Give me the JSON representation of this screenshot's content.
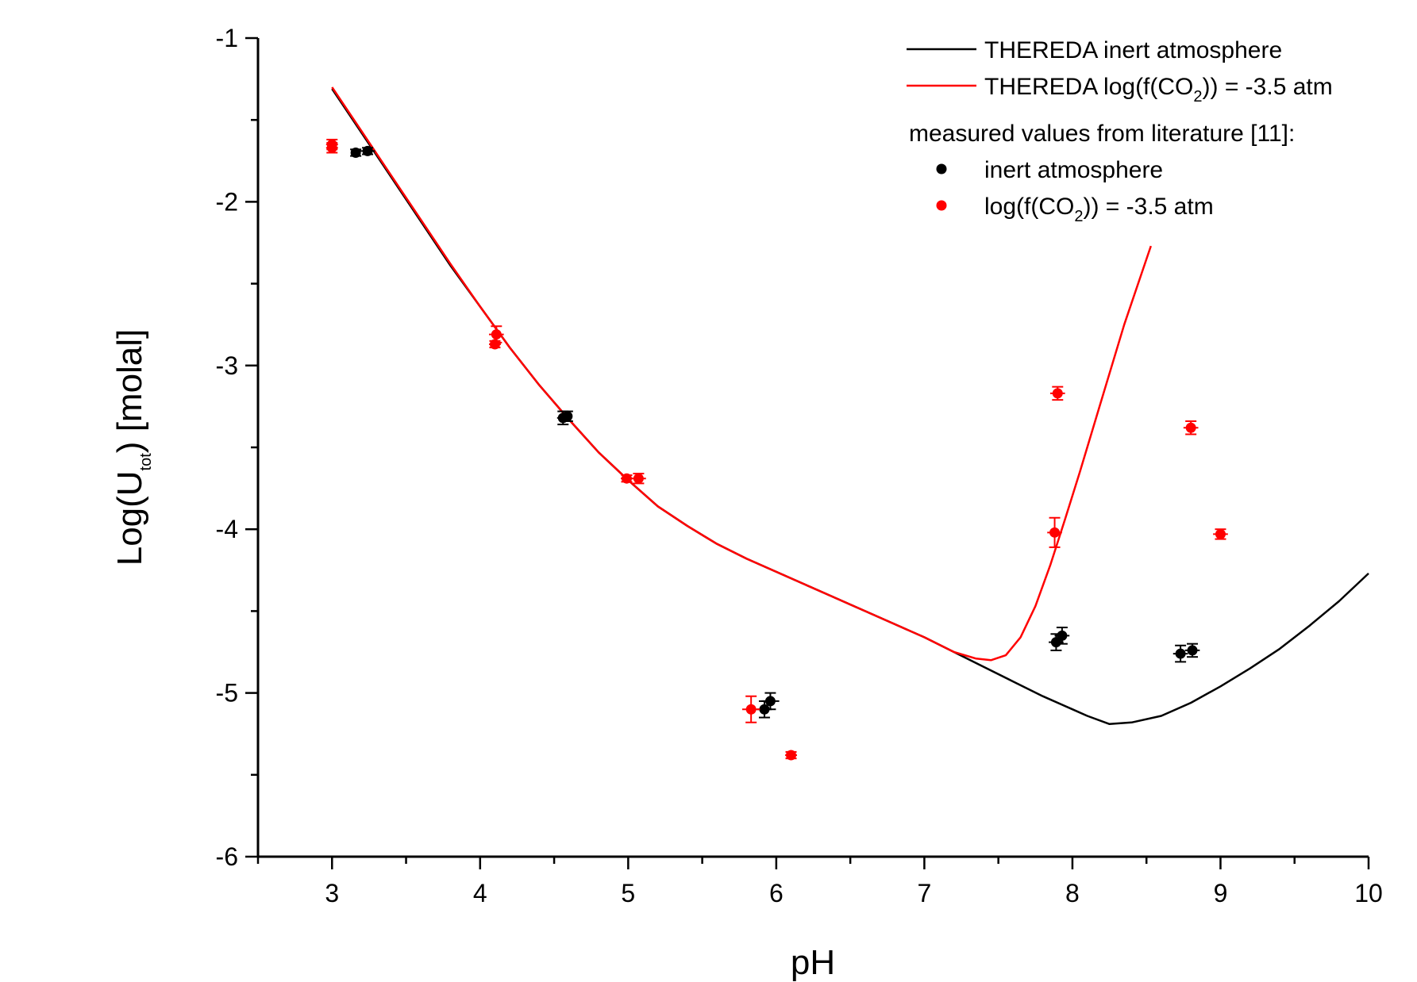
{
  "chart_data": {
    "type": "scatter",
    "xlabel": "pH",
    "ylabel": {
      "main": "Log(U",
      "sub": "tot",
      "tail": ") [molal]"
    },
    "xlim": [
      2.5,
      10
    ],
    "ylim": [
      -6,
      -1
    ],
    "x_ticks": [
      "3",
      "4",
      "5",
      "6",
      "7",
      "8",
      "9",
      "10"
    ],
    "y_ticks": [
      "-1",
      "-2",
      "-3",
      "-4",
      "-5",
      "-6"
    ],
    "grid": false,
    "legend_position": "top-right",
    "legend": {
      "heading": "measured values from literature [11]:",
      "entries": [
        {
          "id": "line_inert",
          "kind": "line",
          "color": "#000000",
          "text": "THEREDA inert atmosphere"
        },
        {
          "id": "line_co2",
          "kind": "line",
          "color": "#ff0000",
          "text_parts": [
            "THEREDA log(f(CO",
            "2",
            ")) = -3.5 atm"
          ]
        },
        {
          "id": "pts_inert",
          "kind": "marker",
          "color": "#000000",
          "text": "inert atmosphere"
        },
        {
          "id": "pts_co2",
          "kind": "marker",
          "color": "#ff0000",
          "text_parts": [
            "log(f(CO",
            "2",
            ")) = -3.5 atm"
          ]
        }
      ]
    },
    "series": [
      {
        "id": "line_inert",
        "type": "line",
        "color": "#000000",
        "x": [
          3.0,
          3.2,
          3.4,
          3.6,
          3.8,
          4.0,
          4.2,
          4.4,
          4.6,
          4.8,
          5.0,
          5.2,
          5.4,
          5.6,
          5.8,
          6.0,
          6.2,
          6.4,
          6.6,
          6.8,
          7.0,
          7.2,
          7.4,
          7.6,
          7.8,
          8.0,
          8.1,
          8.25,
          8.4,
          8.6,
          8.8,
          9.0,
          9.2,
          9.4,
          9.6,
          9.8,
          10.0
        ],
        "y": [
          -1.31,
          -1.58,
          -1.85,
          -2.12,
          -2.39,
          -2.64,
          -2.89,
          -3.12,
          -3.33,
          -3.53,
          -3.7,
          -3.86,
          -3.98,
          -4.09,
          -4.18,
          -4.26,
          -4.34,
          -4.42,
          -4.5,
          -4.58,
          -4.66,
          -4.75,
          -4.84,
          -4.93,
          -5.02,
          -5.1,
          -5.14,
          -5.19,
          -5.18,
          -5.14,
          -5.06,
          -4.96,
          -4.85,
          -4.73,
          -4.59,
          -4.44,
          -4.27
        ]
      },
      {
        "id": "line_co2",
        "type": "line",
        "color": "#ff0000",
        "x": [
          3.0,
          3.2,
          3.4,
          3.6,
          3.8,
          4.0,
          4.2,
          4.4,
          4.6,
          4.8,
          5.0,
          5.2,
          5.4,
          5.6,
          5.8,
          6.0,
          6.2,
          6.4,
          6.6,
          6.8,
          7.0,
          7.2,
          7.35,
          7.45,
          7.55,
          7.65,
          7.75,
          7.85,
          7.95,
          8.05,
          8.2,
          8.35,
          8.5,
          8.53
        ],
        "y": [
          -1.3,
          -1.57,
          -1.84,
          -2.11,
          -2.38,
          -2.64,
          -2.89,
          -3.12,
          -3.33,
          -3.53,
          -3.7,
          -3.86,
          -3.98,
          -4.09,
          -4.18,
          -4.26,
          -4.34,
          -4.42,
          -4.5,
          -4.58,
          -4.66,
          -4.75,
          -4.79,
          -4.8,
          -4.77,
          -4.66,
          -4.47,
          -4.22,
          -3.94,
          -3.65,
          -3.2,
          -2.75,
          -2.35,
          -2.27
        ]
      },
      {
        "id": "pts_inert",
        "type": "scatter",
        "color": "#000000",
        "points": [
          {
            "x": 3.16,
            "y": -1.7,
            "xerr": 0.03,
            "yerr": 0.02
          },
          {
            "x": 3.24,
            "y": -1.69,
            "xerr": 0.05,
            "yerr": 0.02
          },
          {
            "x": 4.56,
            "y": -3.32,
            "xerr": 0.04,
            "yerr": 0.04
          },
          {
            "x": 4.59,
            "y": -3.31,
            "xerr": 0.03,
            "yerr": 0.03
          },
          {
            "x": 5.92,
            "y": -5.1,
            "xerr": 0.05,
            "yerr": 0.05
          },
          {
            "x": 5.96,
            "y": -5.05,
            "xerr": 0.06,
            "yerr": 0.05
          },
          {
            "x": 7.89,
            "y": -4.69,
            "xerr": 0.05,
            "yerr": 0.05
          },
          {
            "x": 7.93,
            "y": -4.65,
            "xerr": 0.05,
            "yerr": 0.05
          },
          {
            "x": 8.73,
            "y": -4.76,
            "xerr": 0.05,
            "yerr": 0.05
          },
          {
            "x": 8.81,
            "y": -4.74,
            "xerr": 0.05,
            "yerr": 0.04
          }
        ]
      },
      {
        "id": "pts_co2",
        "type": "scatter",
        "color": "#ff0000",
        "points": [
          {
            "x": 3.0,
            "y": -1.65,
            "xerr": 0.04,
            "yerr": 0.03
          },
          {
            "x": 3.0,
            "y": -1.67,
            "xerr": 0.04,
            "yerr": 0.03
          },
          {
            "x": 4.1,
            "y": -2.87,
            "xerr": 0.04,
            "yerr": 0.02
          },
          {
            "x": 4.11,
            "y": -2.81,
            "xerr": 0.05,
            "yerr": 0.05
          },
          {
            "x": 4.99,
            "y": -3.69,
            "xerr": 0.04,
            "yerr": 0.02
          },
          {
            "x": 5.07,
            "y": -3.69,
            "xerr": 0.05,
            "yerr": 0.03
          },
          {
            "x": 5.83,
            "y": -5.1,
            "xerr": 0.06,
            "yerr": 0.08
          },
          {
            "x": 6.1,
            "y": -5.38,
            "xerr": 0.04,
            "yerr": 0.02
          },
          {
            "x": 7.88,
            "y": -4.02,
            "xerr": 0.05,
            "yerr": 0.09
          },
          {
            "x": 7.9,
            "y": -3.17,
            "xerr": 0.05,
            "yerr": 0.04
          },
          {
            "x": 8.8,
            "y": -3.38,
            "xerr": 0.05,
            "yerr": 0.04
          },
          {
            "x": 9.0,
            "y": -4.03,
            "xerr": 0.05,
            "yerr": 0.03
          }
        ]
      }
    ]
  }
}
